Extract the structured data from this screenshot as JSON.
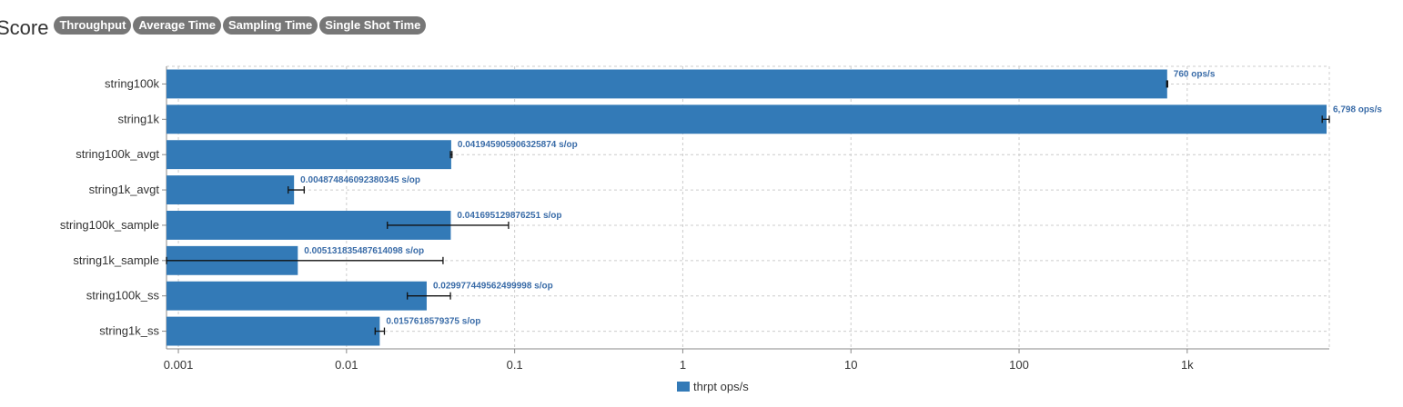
{
  "header": {
    "title": "Score",
    "tabs": [
      "Throughput",
      "Average Time",
      "Sampling Time",
      "Single Shot Time"
    ]
  },
  "colors": {
    "bar": "#337ab7",
    "tab_bg": "#777777",
    "grid": "#cccccc",
    "error_bar": "#111111",
    "data_label": "#3a6ca8"
  },
  "chart_data": {
    "type": "bar",
    "orientation": "horizontal",
    "xscale": "log",
    "xlim": [
      0.00085,
      7000
    ],
    "x_ticks": [
      0.001,
      0.01,
      0.1,
      1,
      10,
      100,
      1000
    ],
    "x_tick_labels": [
      "0.001",
      "0.01",
      "0.1",
      "1",
      "10",
      "100",
      "1k"
    ],
    "grid": true,
    "legend_position": "bottom",
    "categories": [
      "string100k",
      "string1k",
      "string100k_avgt",
      "string1k_avgt",
      "string100k_sample",
      "string1k_sample",
      "string100k_ss",
      "string1k_ss"
    ],
    "series": [
      {
        "name": "thrpt ops/s",
        "values": [
          760,
          6798,
          0.041945905906325874,
          0.004874846092380345,
          0.041695129876251,
          0.005131835487614098,
          0.029977449562499998,
          0.0157618579375
        ],
        "labels": [
          "760 ops/s",
          "6,798 ops/s",
          "0.041945905906325874 s/op",
          "0.004874846092380345 s/op",
          "0.041695129876251 s/op",
          "0.005131835487614098 s/op",
          "0.029977449562499998 s/op",
          "0.0157618579375 s/op"
        ],
        "error_low": [
          755,
          6350,
          0.0415,
          0.0045,
          0.0175,
          0.00085,
          0.023,
          0.0148
        ],
        "error_high": [
          765,
          7000,
          0.0424,
          0.0056,
          0.092,
          0.0375,
          0.0415,
          0.0168
        ]
      }
    ]
  }
}
